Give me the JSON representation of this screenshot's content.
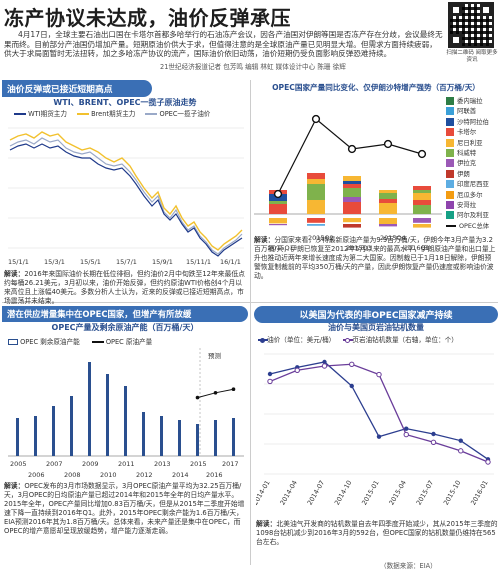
{
  "header": {
    "headline": "冻产协议未达成，油价反弹承压",
    "intro": "4月17日，全球主要石油出口国在卡塔尔首都多哈举行的石油冻产会议，因各产油国对伊朗等国是否冻产存在分歧，会议最终无果而终。目前部分产油国仍增加产量。短期原油价供大于求，但值得注意的是全球原油产量已见明显大增。但需求方面持续疲弱，供大于求局面暂时无法扭转，加之多哈冻产协议的流产，国际油价依旧动荡，油价短期仍受负面影响反弹恐难持续。",
    "byline": "21世纪经济报道记者 包芳鸣 编辑 林虹 媒体设计中心 陈珊 徐辉",
    "qr_note": "扫描二维码 阅取更多资讯"
  },
  "panel1": {
    "section": "油价反弹或已接近短期高点",
    "subtitle": "WTI、BRENT、OPEC一揽子原油走势",
    "legend": [
      "WTI期货主力",
      "Brent期货主力",
      "OPEC一揽子油价"
    ],
    "xticks": [
      "15/1/1",
      "15/3/1",
      "15/5/1",
      "15/7/1",
      "15/9/1",
      "15/11/1",
      "16/1/1"
    ],
    "note_label": "解读：",
    "note": "2016年来国际油价长期在低位徘徊，但约油价2月中旬跌至12年来最低点约每桶26.21美元，3月初以来，油价开始反弹，但约约原油WTI价格创4个月以来高位且上涨幅40美元。多数分析人士认为，近来的反弹或已接近短期高点，市场震荡并未结束。"
  },
  "panel2": {
    "subtitle": "OPEC国家产量同比变化、仅伊朗沙特增产强势（百万桶/天）",
    "legend": [
      "委内瑞拉",
      "阿联酋",
      "沙特阿拉伯",
      "卡塔尔",
      "尼日利亚",
      "科威特",
      "伊拉克",
      "伊朗",
      "印度尼西亚",
      "厄瓜多尔",
      "安哥拉",
      "阿尔及利亚",
      "OPEC总体"
    ],
    "legend_colors": [
      "#2e7d46",
      "#3aa0d8",
      "#1f4f9f",
      "#e84b3b",
      "#f7b733",
      "#7fb24c",
      "#9b59b6",
      "#c0392b",
      "#5dade2",
      "#f39c12",
      "#8e44ad",
      "#16a085",
      "#111111"
    ],
    "xticks": [
      "2015Q1",
      "2015Q2",
      "2015Q3",
      "2015Q4",
      "2016Q1"
    ],
    "note_label": "解读：",
    "note": "分国家来看，沙特最新原油产量为9.9百万桶/天，伊朗今年3月产量为3.2百万桶/天，伊朗已恢复至2012年5月以来的最高水平，伊朗原油产量和出口量上升也推动近两年来增长速度成为第二大国家。因制裁已于1月18日解除，伊朗预警恢复制裁前的平均350万桶/天的产量，因此伊朗恢复产量仍速度或影响油价波动。",
    "chart_data": {
      "type": "bar",
      "categories": [
        "2015Q1",
        "2015Q2",
        "2015Q3",
        "2015Q4",
        "2016Q1"
      ],
      "series": [
        {
          "name": "OPEC总体",
          "values": [
            0.4,
            1.9,
            1.3,
            1.4,
            1.2
          ]
        }
      ],
      "ylabel": "百万桶/天"
    }
  },
  "panel3": {
    "section": "潜在供应增量集中在OPEC国家，但增产有所放缓",
    "subtitle": "OPEC产量及剩余原油产能（百万桶/天）",
    "legend": [
      "OPEC 剩余原油产能",
      "OPEC 原油产量"
    ],
    "forecast_label": "预测",
    "xticks_top": [
      "2005",
      "2007",
      "2009",
      "2011",
      "2013",
      "2015",
      "2017"
    ],
    "xticks_bottom": [
      "2006",
      "2008",
      "2010",
      "2012",
      "2014",
      "2016"
    ],
    "note_label": "解读：",
    "note": "OPEC发布的3月市场数据显示，3月OPEC原油产量平均为32.25百万桶/天，3月OPEC的日均原油产量已超过2014年和2015年全年的日均产量水平。2015年全年，OPEC产量同比增加0.83百万桶/天，但是从2015年二季度开始增速下降一直持续到2016年Q1。此外，2015年OPEC剩余产能为1.6百万桶/天，EIA预测2016年其为1.8百万桶/天。总体来看，未来产量还是集中在OPEC，而OPEC的增产意愿却呈现放缓趋势，增产能力逐渐走弱。",
    "chart_data": {
      "type": "bar",
      "series": [
        {
          "name": "OPEC 剩余原油产能",
          "values": [
            1.9,
            2.0,
            2.5,
            3.0,
            4.7,
            4.1,
            3.5,
            2.2,
            2.0,
            1.8,
            1.6,
            1.8,
            1.9
          ]
        },
        {
          "name": "OPEC 原油产量",
          "values": [
            32.0,
            31.8,
            32.3,
            32.0,
            29.5,
            30.9,
            31.3,
            32.4,
            31.6,
            31.0,
            32.2,
            32.6,
            32.9
          ]
        }
      ],
      "x": [
        "2005",
        "2006",
        "2007",
        "2008",
        "2009",
        "2010",
        "2011",
        "2012",
        "2013",
        "2014",
        "2015",
        "2016",
        "2017"
      ]
    }
  },
  "panel4": {
    "section": "以美国为代表的非OPEC国家减产持续",
    "subtitle": "油价与美国页岩油钻机数量",
    "legend": [
      "油价（单位：美元/桶）",
      "页岩油钻机数量（右轴，单位：个）"
    ],
    "xticks": [
      "2014-01",
      "2014-04",
      "2014-07",
      "2014-10",
      "2015-01",
      "2015-04",
      "2015-07",
      "2015-10",
      "2016-01"
    ],
    "note_label": "解读：",
    "note": "北美油气开发商的钻机数量自去年四季度开始减少，其从2015年三季度的1098台钻机减少到2016年3月的592台，但OPEC国家的钻机数量仍维持在565台左右。",
    "chart_data": {
      "type": "line",
      "x": [
        "2014-01",
        "2014-04",
        "2014-07",
        "2014-10",
        "2015-01",
        "2015-04",
        "2015-07",
        "2015-10",
        "2016-01"
      ],
      "series": [
        {
          "name": "油价（单位：美元/桶）",
          "values": [
            95,
            100,
            104,
            86,
            48,
            54,
            50,
            45,
            31
          ]
        },
        {
          "name": "页岩油钻机数量（右轴，单位：个）",
          "values": [
            1380,
            1510,
            1560,
            1580,
            1460,
            760,
            670,
            570,
            440
          ]
        }
      ]
    }
  },
  "footer": {
    "source": "（数据来源：EIA）"
  }
}
